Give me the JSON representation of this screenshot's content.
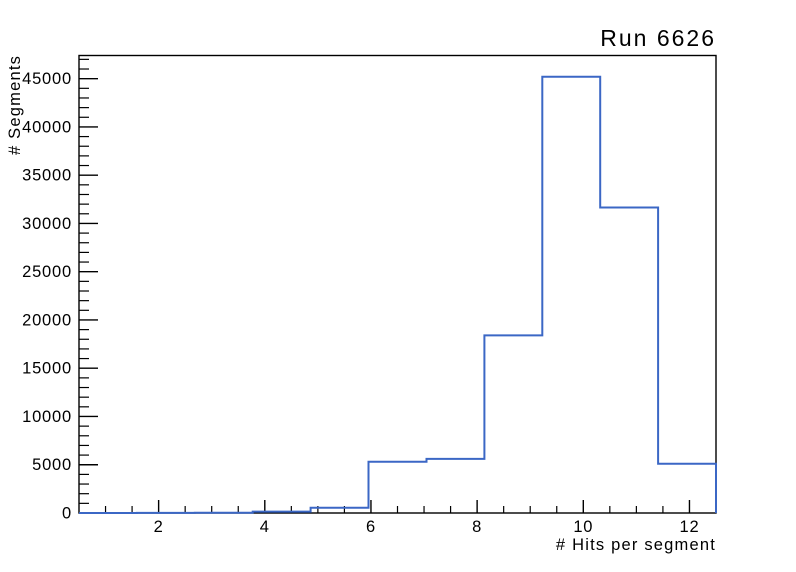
{
  "chart_data": {
    "type": "histogram",
    "title": "Run 6626",
    "xlabel": "# Hits per segment",
    "ylabel": "# Segments",
    "x_range": [
      0.5,
      12.5
    ],
    "y_range": [
      0,
      47400
    ],
    "x_major_ticks": [
      2,
      4,
      6,
      8,
      10,
      12
    ],
    "x_minor_tick_step": 0.5,
    "y_major_ticks": [
      0,
      5000,
      10000,
      15000,
      20000,
      25000,
      30000,
      35000,
      40000,
      45000
    ],
    "y_minor_tick_step": 1000,
    "bin_edges": [
      0.5,
      1.5909,
      2.6818,
      3.7727,
      4.8636,
      5.9545,
      7.0455,
      8.1364,
      9.2273,
      10.3182,
      11.4091,
      12.5
    ],
    "bin_values": [
      2,
      10,
      30,
      150,
      550,
      5300,
      5600,
      18400,
      45200,
      31650,
      5100
    ],
    "grid": false,
    "legend": null,
    "line_color": "#3b67c5",
    "axis_color": "#000000",
    "background_color": "#ffffff"
  }
}
